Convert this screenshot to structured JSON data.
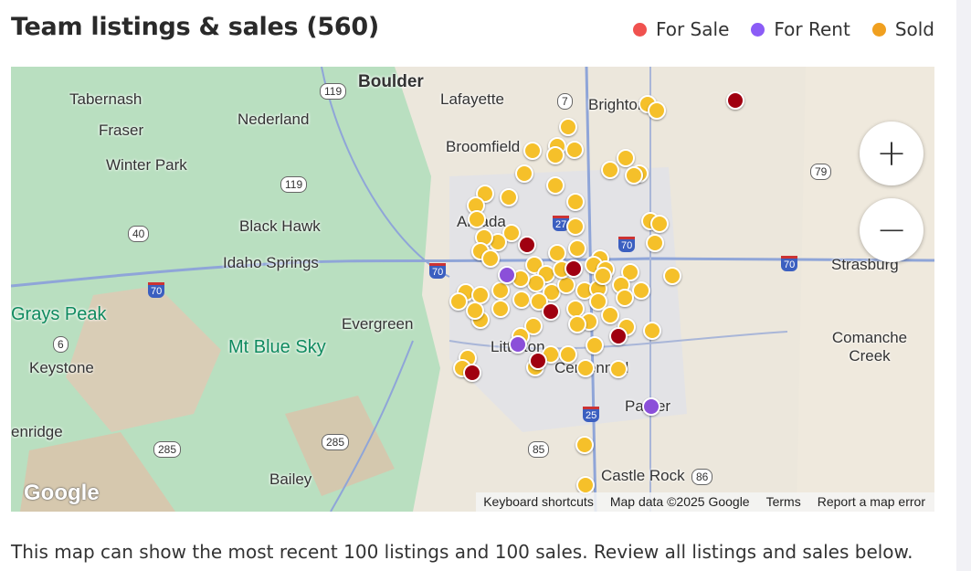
{
  "header": {
    "title": "Team listings & sales (560)"
  },
  "legend": [
    {
      "label": "For Sale",
      "color": "#f0524f"
    },
    {
      "label": "For Rent",
      "color": "#8b5cf6"
    },
    {
      "label": "Sold",
      "color": "#f0a020"
    }
  ],
  "map": {
    "places": [
      "Boulder",
      "Lafayette",
      "Brighton",
      "Tabernash",
      "Nederland",
      "Fraser",
      "Broomfield",
      "Winter Park",
      "Black Hawk",
      "Arvada",
      "Idaho Springs",
      "Strasburg",
      "Grays Peak",
      "Mt Blue Sky",
      "Evergreen",
      "Comanche Creek",
      "Keystone",
      "Littleton",
      "Centennial",
      "Parker",
      "enridge",
      "Bailey",
      "Castle Rock"
    ],
    "roads": [
      "119",
      "7",
      "119",
      "79",
      "40",
      "27",
      "70",
      "70",
      "70",
      "70",
      "6",
      "25",
      "285",
      "285",
      "85",
      "86"
    ],
    "zoom_in": "+",
    "zoom_out": "−",
    "logo": "Google",
    "attribution": {
      "shortcuts": "Keyboard shortcuts",
      "data": "Map data ©2025 Google",
      "terms": "Terms",
      "report": "Report a map error"
    },
    "marker_colors": {
      "sale": "#a00010",
      "rent": "#8b4fd9",
      "sold": "#f5c02a"
    }
  },
  "footer": {
    "note": "This map can show the most recent 100 listings and 100 sales. Review all listings and sales below."
  }
}
